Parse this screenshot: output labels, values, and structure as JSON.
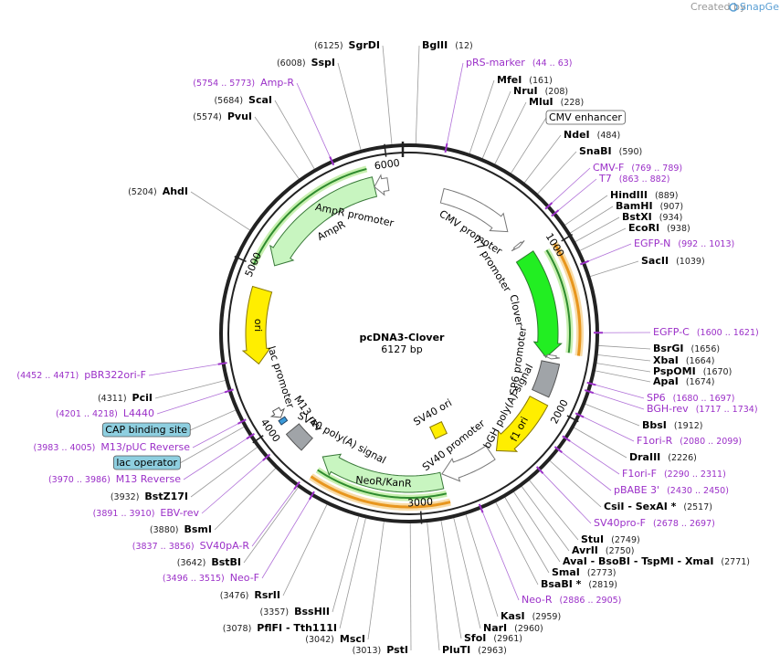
{
  "header": {
    "created_by": "Created by",
    "brand": "SnapGene"
  },
  "map": {
    "title": "pcDNA3-Clover",
    "length": "6127 bp",
    "ring_ticks": [
      "1000",
      "2000",
      "3000",
      "4000",
      "5000",
      "6000"
    ],
    "features": [
      "AmpR promoter",
      "AmpR",
      "CMV promoter",
      "T7 promoter",
      "Clover",
      "SP6 promoter",
      "bGH poly(A) signal",
      "f1 ori",
      "SV40 promoter",
      "SV40 ori",
      "NeoR/KanR",
      "SV40 poly(A) signal",
      "M13 rev",
      "lac promoter",
      "ori"
    ],
    "labels": [
      {
        "pos": "(6125)",
        "name": "SgrDI",
        "color": "#000000"
      },
      {
        "pos": "(12)",
        "name": "BglII",
        "color": "#000000"
      },
      {
        "pos": "(6008)",
        "name": "SspI",
        "color": "#000000"
      },
      {
        "pos": "(44 .. 63)",
        "name": "pRS-marker",
        "color": "#9b30c8"
      },
      {
        "pos": "(161)",
        "name": "MfeI",
        "color": "#000000"
      },
      {
        "pos": "(208)",
        "name": "NruI",
        "color": "#000000"
      },
      {
        "pos": "(228)",
        "name": "MluI",
        "color": "#000000"
      },
      {
        "name": "CMV enhancer",
        "color": "#000000",
        "box": "#ffffff"
      },
      {
        "pos": "(5754 .. 5773)",
        "name": "Amp-R",
        "color": "#9b30c8"
      },
      {
        "pos": "(5684)",
        "name": "ScaI",
        "color": "#000000"
      },
      {
        "pos": "(5574)",
        "name": "PvuI",
        "color": "#000000"
      },
      {
        "pos": "(484)",
        "name": "NdeI",
        "color": "#000000"
      },
      {
        "pos": "(590)",
        "name": "SnaBI",
        "color": "#000000"
      },
      {
        "pos": "(769 .. 789)",
        "name": "CMV-F",
        "color": "#9b30c8"
      },
      {
        "pos": "(863 .. 882)",
        "name": "T7",
        "color": "#9b30c8"
      },
      {
        "pos": "(5204)",
        "name": "AhdI",
        "color": "#000000"
      },
      {
        "pos": "(889)",
        "name": "HindIII",
        "color": "#000000"
      },
      {
        "pos": "(907)",
        "name": "BamHI",
        "color": "#000000"
      },
      {
        "pos": "(934)",
        "name": "BstXI",
        "color": "#000000"
      },
      {
        "pos": "(938)",
        "name": "EcoRI",
        "color": "#000000"
      },
      {
        "pos": "(992 .. 1013)",
        "name": "EGFP-N",
        "color": "#9b30c8"
      },
      {
        "pos": "(1039)",
        "name": "SacII",
        "color": "#000000"
      },
      {
        "pos": "(1600 .. 1621)",
        "name": "EGFP-C",
        "color": "#9b30c8"
      },
      {
        "pos": "(1656)",
        "name": "BsrGI",
        "color": "#000000"
      },
      {
        "pos": "(1664)",
        "name": "XbaI",
        "color": "#000000"
      },
      {
        "pos": "(1670)",
        "name": "PspOMI",
        "color": "#000000"
      },
      {
        "pos": "(1674)",
        "name": "ApaI",
        "color": "#000000"
      },
      {
        "pos": "(1680 .. 1697)",
        "name": "SP6",
        "color": "#9b30c8"
      },
      {
        "pos": "(1717 .. 1734)",
        "name": "BGH-rev",
        "color": "#9b30c8"
      },
      {
        "pos": "(1912)",
        "name": "BbsI",
        "color": "#000000"
      },
      {
        "pos": "(2080 .. 2099)",
        "name": "F1ori-R",
        "color": "#9b30c8"
      },
      {
        "pos": "(2226)",
        "name": "DraIII",
        "color": "#000000"
      },
      {
        "pos": "(2290 .. 2311)",
        "name": "F1ori-F",
        "color": "#9b30c8"
      },
      {
        "pos": "(2430 .. 2450)",
        "name": "pBABE 3'",
        "color": "#9b30c8"
      },
      {
        "pos": "(2517)",
        "name": "CsiI - SexAI *",
        "color": "#000000"
      },
      {
        "pos": "(2678 .. 2697)",
        "name": "SV40pro-F",
        "color": "#9b30c8"
      },
      {
        "pos": "(2749)",
        "name": "StuI",
        "color": "#000000"
      },
      {
        "pos": "(2750)",
        "name": "AvrII",
        "color": "#000000"
      },
      {
        "pos": "(2771)",
        "name": "AvaI - BsoBI - TspMI - XmaI",
        "color": "#000000"
      },
      {
        "pos": "(2773)",
        "name": "SmaI",
        "color": "#000000"
      },
      {
        "pos": "(2819)",
        "name": "BsaBI *",
        "color": "#000000"
      },
      {
        "pos": "(2886 .. 2905)",
        "name": "Neo-R",
        "color": "#9b30c8"
      },
      {
        "pos": "(2959)",
        "name": "KasI",
        "color": "#000000"
      },
      {
        "pos": "(2960)",
        "name": "NarI",
        "color": "#000000"
      },
      {
        "pos": "(2961)",
        "name": "SfoI",
        "color": "#000000"
      },
      {
        "pos": "(2963)",
        "name": "PluTI",
        "color": "#000000"
      },
      {
        "pos": "(3013)",
        "name": "PstI",
        "color": "#000000"
      },
      {
        "pos": "(3042)",
        "name": "MscI",
        "color": "#000000"
      },
      {
        "pos": "(3078)",
        "name": "PflFI - Tth111I",
        "color": "#000000"
      },
      {
        "pos": "(3357)",
        "name": "BssHII",
        "color": "#000000"
      },
      {
        "pos": "(3476)",
        "name": "RsrII",
        "color": "#000000"
      },
      {
        "pos": "(3496 .. 3515)",
        "name": "Neo-F",
        "color": "#9b30c8"
      },
      {
        "pos": "(3642)",
        "name": "BstBI",
        "color": "#000000"
      },
      {
        "pos": "(3837 .. 3856)",
        "name": "SV40pA-R",
        "color": "#9b30c8"
      },
      {
        "pos": "(3880)",
        "name": "BsmI",
        "color": "#000000"
      },
      {
        "pos": "(3891 .. 3910)",
        "name": "EBV-rev",
        "color": "#9b30c8"
      },
      {
        "pos": "(3932)",
        "name": "BstZ17I",
        "color": "#000000"
      },
      {
        "pos": "(3970 .. 3986)",
        "name": "M13 Reverse",
        "color": "#9b30c8"
      },
      {
        "name": "lac operator",
        "color": "#000000",
        "box": "#8ecfe0"
      },
      {
        "pos": "(3983 .. 4005)",
        "name": "M13/pUC Reverse",
        "color": "#9b30c8"
      },
      {
        "name": "CAP binding site",
        "color": "#000000",
        "box": "#8ecfe0"
      },
      {
        "pos": "(4201 .. 4218)",
        "name": "L4440",
        "color": "#9b30c8"
      },
      {
        "pos": "(4311)",
        "name": "PciI",
        "color": "#000000"
      },
      {
        "pos": "(4452 .. 4471)",
        "name": "pBR322ori-F",
        "color": "#9b30c8"
      }
    ]
  }
}
